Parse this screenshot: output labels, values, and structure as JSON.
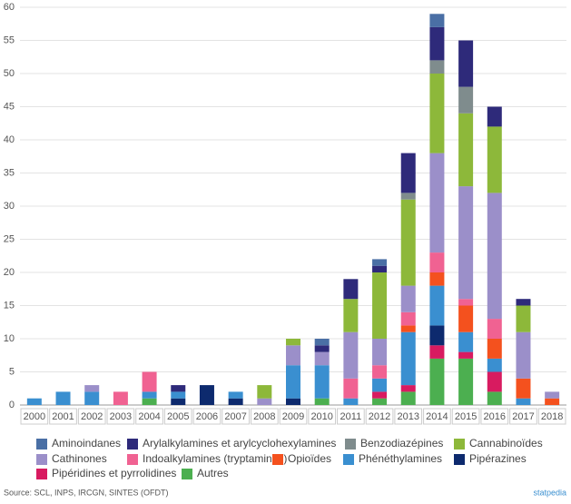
{
  "chart_data": {
    "type": "stacked_bar",
    "categories": [
      "2000",
      "2001",
      "2002",
      "2003",
      "2004",
      "2005",
      "2006",
      "2007",
      "2008",
      "2009",
      "2010",
      "2011",
      "2012",
      "2013",
      "2014",
      "2015",
      "2016",
      "2017",
      "2018"
    ],
    "series": [
      {
        "name": "Aminoindanes",
        "color": "#4a6fa5",
        "values": [
          0,
          0,
          0,
          0,
          0,
          0,
          0,
          0,
          0,
          0,
          1,
          0,
          1,
          0,
          2,
          0,
          0,
          0,
          0
        ]
      },
      {
        "name": "Arylalkylamines et arylcyclohexylamines",
        "color": "#2e2a7a",
        "values": [
          0,
          0,
          0,
          0,
          0,
          1,
          0,
          0,
          0,
          0,
          1,
          3,
          1,
          6,
          5,
          7,
          3,
          1,
          0
        ]
      },
      {
        "name": "Benzodiazépines",
        "color": "#7f8c8d",
        "values": [
          0,
          0,
          0,
          0,
          0,
          0,
          0,
          0,
          0,
          0,
          0,
          0,
          0,
          1,
          2,
          4,
          0,
          0,
          0
        ]
      },
      {
        "name": "Cannabinoïdes",
        "color": "#8db83a",
        "values": [
          0,
          0,
          0,
          0,
          0,
          0,
          0,
          0,
          2,
          1,
          0,
          5,
          10,
          13,
          12,
          11,
          10,
          4,
          0
        ]
      },
      {
        "name": "Cathinones",
        "color": "#9b8fc9",
        "values": [
          0,
          0,
          1,
          0,
          0,
          0,
          0,
          0,
          1,
          3,
          2,
          7,
          4,
          4,
          15,
          17,
          19,
          7,
          1
        ]
      },
      {
        "name": "Indoalkylamines (tryptamines)",
        "color": "#f06292",
        "values": [
          0,
          0,
          0,
          2,
          3,
          0,
          0,
          0,
          0,
          0,
          0,
          3,
          2,
          2,
          3,
          1,
          3,
          0,
          0
        ]
      },
      {
        "name": "Opioïdes",
        "color": "#f4511e",
        "values": [
          0,
          0,
          0,
          0,
          0,
          0,
          0,
          0,
          0,
          0,
          0,
          0,
          0,
          1,
          2,
          4,
          3,
          3,
          1
        ]
      },
      {
        "name": "Phénéthylamines",
        "color": "#3a8fd0",
        "values": [
          1,
          2,
          2,
          0,
          1,
          1,
          0,
          1,
          0,
          5,
          5,
          1,
          2,
          8,
          6,
          3,
          2,
          1,
          0
        ]
      },
      {
        "name": "Pipérazines",
        "color": "#0d2a6e",
        "values": [
          0,
          0,
          0,
          0,
          0,
          1,
          3,
          1,
          0,
          1,
          0,
          0,
          0,
          0,
          3,
          0,
          0,
          0,
          0
        ]
      },
      {
        "name": "Pipéridines et pyrrolidines",
        "color": "#d81b60",
        "values": [
          0,
          0,
          0,
          0,
          0,
          0,
          0,
          0,
          0,
          0,
          0,
          0,
          1,
          1,
          2,
          1,
          3,
          0,
          0
        ]
      },
      {
        "name": "Autres",
        "color": "#4caf50",
        "values": [
          0,
          0,
          0,
          0,
          1,
          0,
          0,
          0,
          0,
          0,
          1,
          0,
          1,
          2,
          7,
          7,
          2,
          0,
          0
        ]
      }
    ],
    "ylim": [
      0,
      60
    ],
    "yticks": [
      0,
      5,
      10,
      15,
      20,
      25,
      30,
      35,
      40,
      45,
      50,
      55,
      60
    ],
    "grid": true,
    "source": "Source: SCL, INPS, IRCGN, SINTES (OFDT)",
    "brand": "statpedia"
  }
}
